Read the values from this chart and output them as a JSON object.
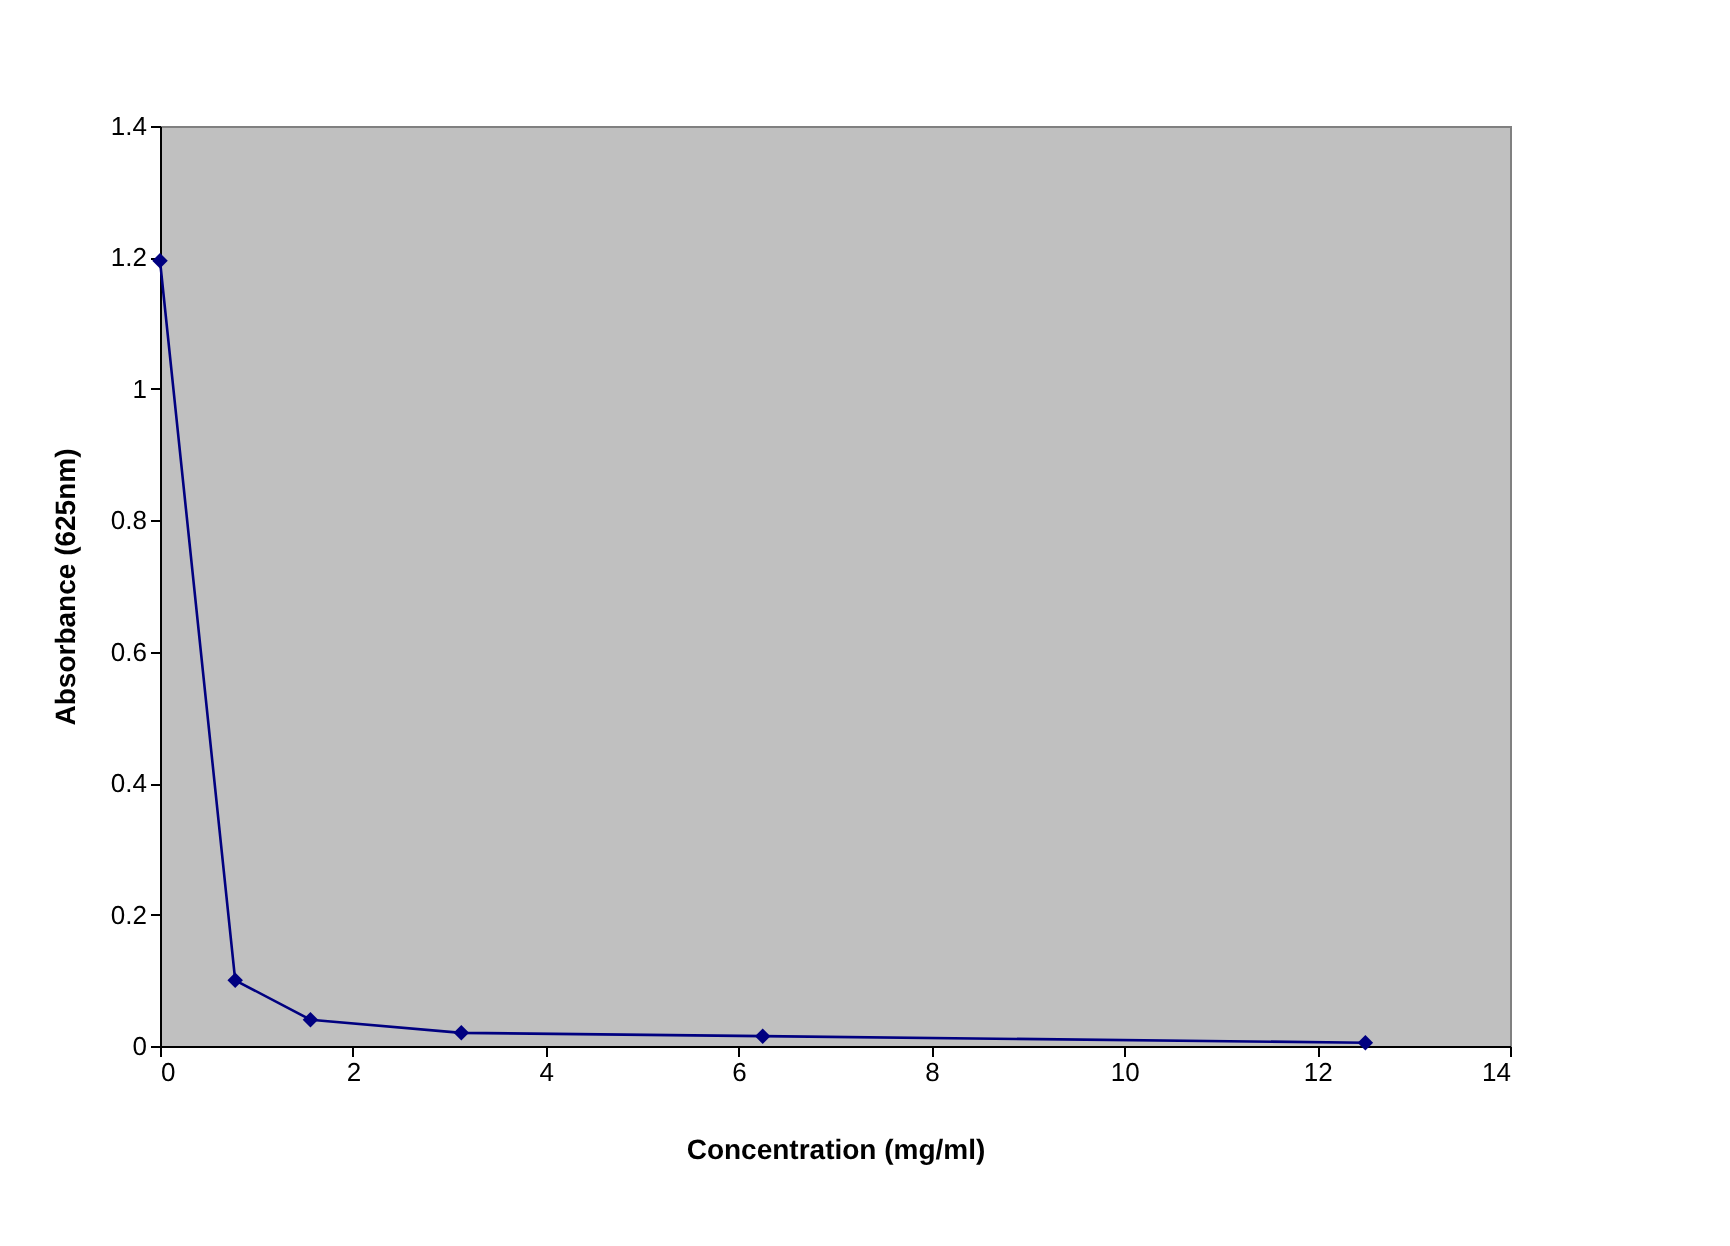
{
  "chart_data": {
    "type": "line",
    "xlabel": "Concentration (mg/ml)",
    "ylabel": "Absorbance (625nm)",
    "x": [
      0,
      0.78,
      1.56,
      3.125,
      6.25,
      12.5
    ],
    "series": [
      {
        "color": "#000080",
        "values": [
          1.195,
          0.1,
          0.04,
          0.02,
          0.015,
          0.005
        ]
      }
    ],
    "xlim": [
      0,
      14
    ],
    "xticks": [
      0,
      2,
      4,
      6,
      8,
      10,
      12,
      14
    ],
    "ylim": [
      0,
      1.4
    ],
    "yticks": [
      0,
      0.2,
      0.4,
      0.6,
      0.8,
      1,
      1.2,
      1.4
    ],
    "marker": "diamond",
    "line_style": "solid"
  }
}
